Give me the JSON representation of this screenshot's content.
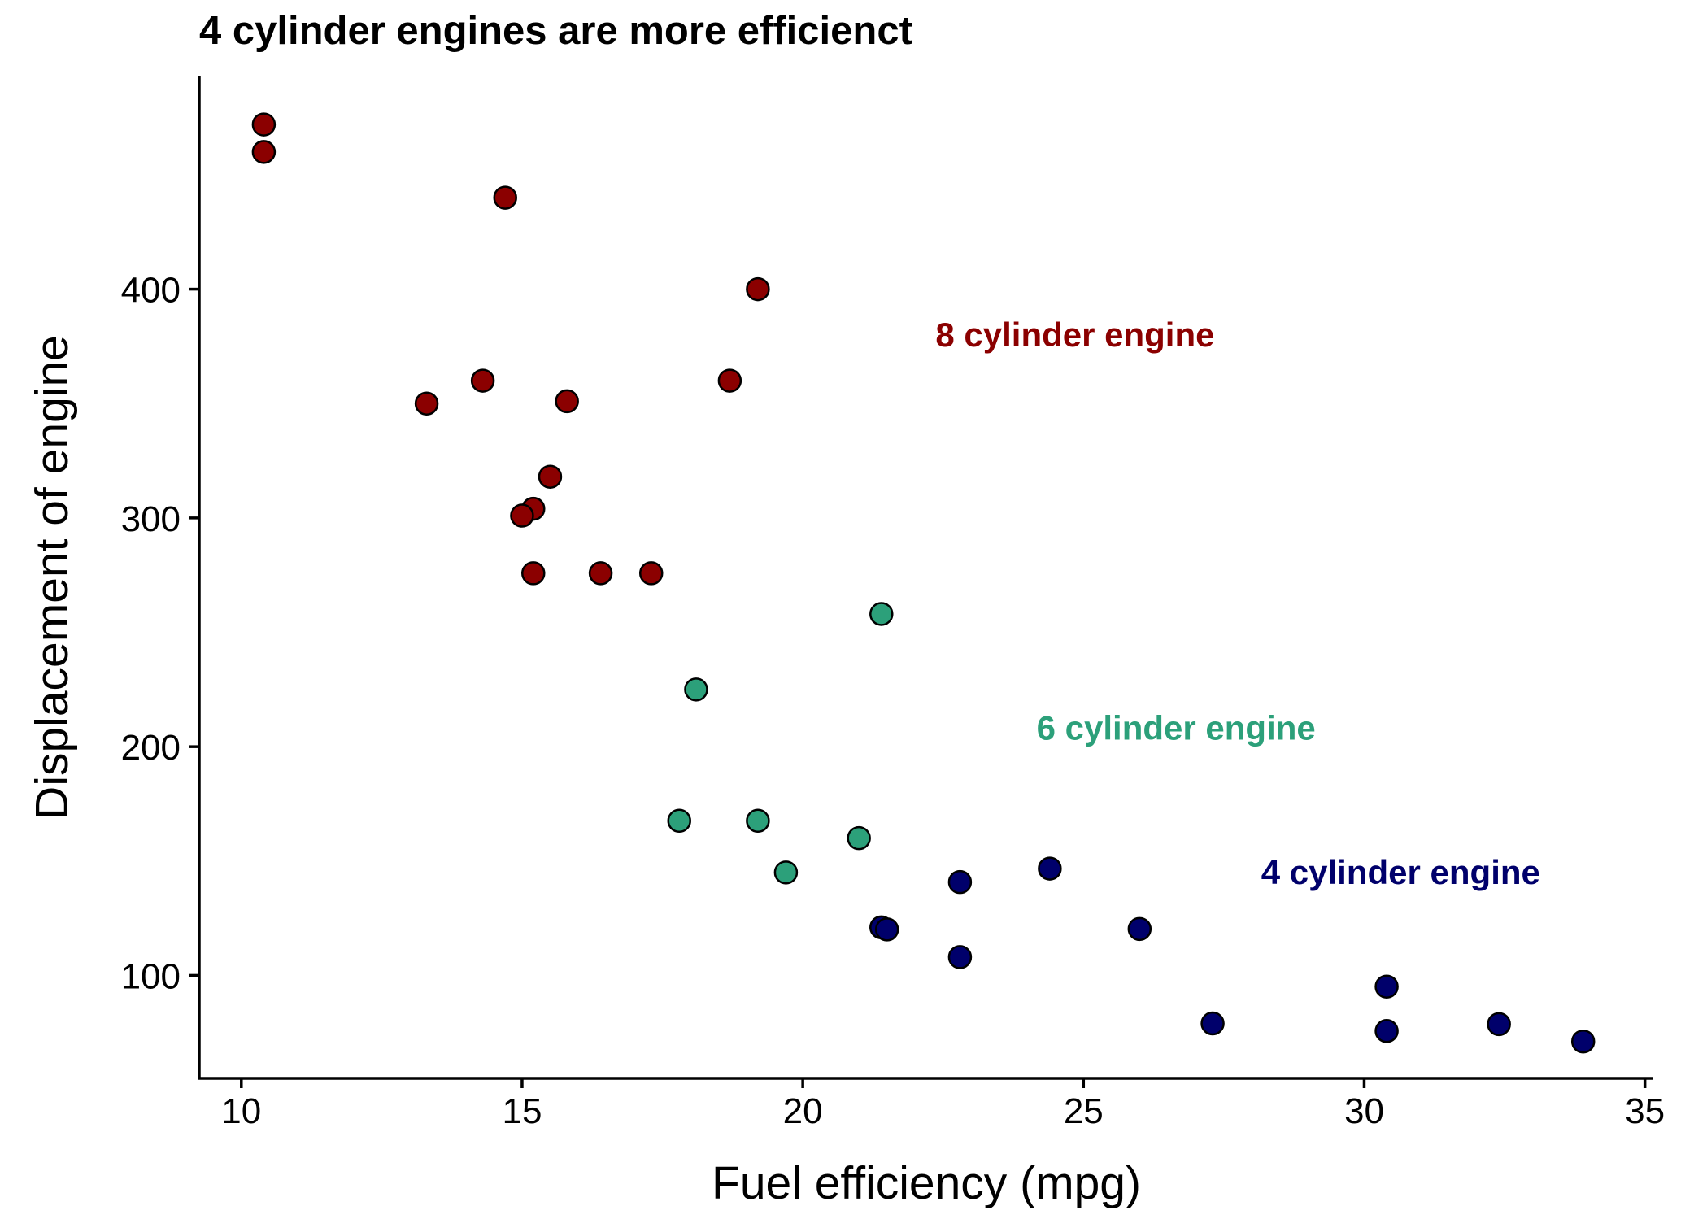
{
  "chart_data": {
    "type": "scatter",
    "title": "4 cylinder engines are more efficienct",
    "xlabel": "Fuel efficiency (mpg)",
    "ylabel": "Displacement of engine",
    "xlim": [
      9.25,
      35.15
    ],
    "ylim": [
      55,
      493
    ],
    "x_ticks": [
      10,
      15,
      20,
      25,
      30,
      35
    ],
    "y_ticks": [
      100,
      200,
      300,
      400
    ],
    "grid": false,
    "legend": "none",
    "series": [
      {
        "key": "cyl8",
        "color": "#8B0000",
        "points": [
          {
            "x": 10.4,
            "y": 472
          },
          {
            "x": 10.4,
            "y": 460
          },
          {
            "x": 14.7,
            "y": 440
          },
          {
            "x": 19.2,
            "y": 400
          },
          {
            "x": 13.3,
            "y": 350
          },
          {
            "x": 14.3,
            "y": 360
          },
          {
            "x": 15.8,
            "y": 351
          },
          {
            "x": 18.7,
            "y": 360
          },
          {
            "x": 15.5,
            "y": 318
          },
          {
            "x": 15.2,
            "y": 304
          },
          {
            "x": 15.0,
            "y": 301
          },
          {
            "x": 15.2,
            "y": 275.8
          },
          {
            "x": 16.4,
            "y": 275.8
          },
          {
            "x": 17.3,
            "y": 275.8
          }
        ]
      },
      {
        "key": "cyl6",
        "color": "#2CA07A",
        "points": [
          {
            "x": 21.4,
            "y": 258
          },
          {
            "x": 18.1,
            "y": 225
          },
          {
            "x": 17.8,
            "y": 167.6
          },
          {
            "x": 19.2,
            "y": 167.6
          },
          {
            "x": 21.0,
            "y": 160
          },
          {
            "x": 19.7,
            "y": 145
          }
        ]
      },
      {
        "key": "cyl4",
        "color": "#00006B",
        "points": [
          {
            "x": 22.8,
            "y": 140.8
          },
          {
            "x": 24.4,
            "y": 146.7
          },
          {
            "x": 21.4,
            "y": 121
          },
          {
            "x": 21.5,
            "y": 120.1
          },
          {
            "x": 26.0,
            "y": 120.3
          },
          {
            "x": 22.8,
            "y": 108
          },
          {
            "x": 30.4,
            "y": 95.1
          },
          {
            "x": 27.3,
            "y": 79
          },
          {
            "x": 32.4,
            "y": 78.7
          },
          {
            "x": 30.4,
            "y": 75.7
          },
          {
            "x": 33.9,
            "y": 71.1
          }
        ]
      }
    ],
    "annotations": [
      {
        "text": "8 cylinder engine",
        "x": 24.85,
        "y": 375,
        "color": "#8B0000"
      },
      {
        "text": "6 cylinder engine",
        "x": 26.65,
        "y": 203,
        "color": "#2CA07A"
      },
      {
        "text": "4 cylinder engine",
        "x": 30.65,
        "y": 140,
        "color": "#00006B"
      }
    ]
  }
}
